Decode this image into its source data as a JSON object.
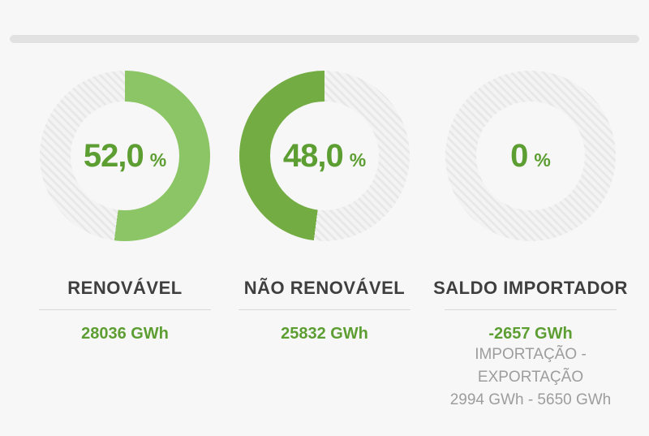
{
  "colors": {
    "background": "#f7f7f7",
    "top_bar": "#e2e2e2",
    "renewable_arc": "#8cc565",
    "non_renewable_arc": "#74ac44",
    "accent_green_text": "#5d9e33",
    "track_stripe_dark": "#e7e7e7",
    "track_stripe_light": "#f3f3f3",
    "title_text": "#3f3f3f",
    "muted_text": "#9d9d9d"
  },
  "chart_data": [
    {
      "type": "pie",
      "variant": "donut-gauge",
      "title": "RENOVÁVEL",
      "percent": 52.0,
      "percent_display": "52,0",
      "percent_unit": "%",
      "value": 28036,
      "value_display": "28036 GWh",
      "arc_color": "#8cc565",
      "fill_direction": "clockwise",
      "track_style": "hatched"
    },
    {
      "type": "pie",
      "variant": "donut-gauge",
      "title": "NÃO RENOVÁVEL",
      "percent": 48.0,
      "percent_display": "48,0",
      "percent_unit": "%",
      "value": 25832,
      "value_display": "25832 GWh",
      "arc_color": "#74ac44",
      "fill_direction": "counterclockwise",
      "track_style": "hatched"
    },
    {
      "type": "pie",
      "variant": "donut-gauge",
      "title": "SALDO IMPORTADOR",
      "percent": 0,
      "percent_display": "0",
      "percent_unit": "%",
      "value": -2657,
      "value_display": "-2657 GWh",
      "detail_lines": [
        "IMPORTAÇÃO -",
        "EXPORTAÇÃO",
        "2994 GWh - 5650 GWh"
      ],
      "arc_color": "#74ac44",
      "fill_direction": "clockwise",
      "track_style": "hatched"
    }
  ]
}
